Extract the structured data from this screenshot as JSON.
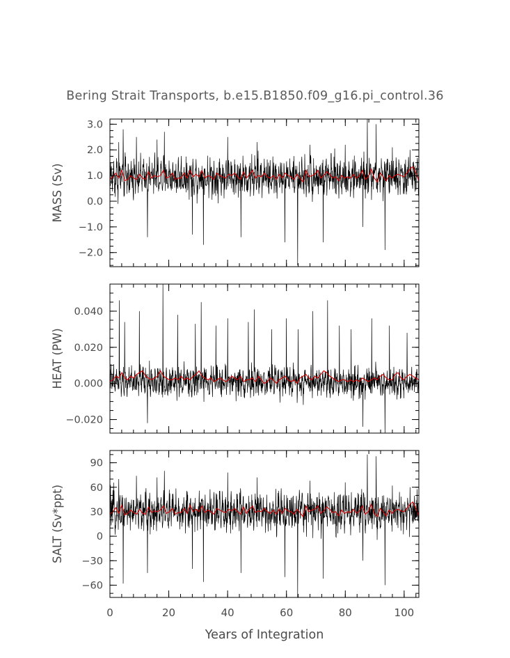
{
  "title": "Bering Strait Transports, b.e15.B1850.f09_g16.pi_control.36",
  "xlabel": "Years of Integration",
  "colors": {
    "raw": "#000000",
    "smooth": "#d40000",
    "axis": "#000000",
    "text": "#4a4a4a"
  },
  "chart_data": [
    {
      "type": "line",
      "ylabel": "MASS (Sv)",
      "xlim": [
        0,
        105
      ],
      "ylim": [
        -2.55,
        3.2
      ],
      "yticks": [
        3.0,
        2.0,
        1.0,
        0.0,
        -1.0,
        -2.0
      ],
      "ytick_labels": [
        "3.0",
        "2.0",
        "1.0",
        "0.0",
        "−1.0",
        "−2.0"
      ],
      "y_minor_step": 0.25,
      "xticks": [
        0,
        20,
        40,
        60,
        80,
        100
      ],
      "x_minor_step": 4,
      "show_xtick_labels": false,
      "series": [
        {
          "role": "monthly",
          "color": "#000000",
          "mean": 0.95,
          "amp": 0.55,
          "spikes": [
            [
              3,
              2.3
            ],
            [
              4.5,
              2.8
            ],
            [
              9,
              2.5
            ],
            [
              12.8,
              -1.4
            ],
            [
              16,
              2.4
            ],
            [
              18.5,
              2.7
            ],
            [
              28,
              -1.3
            ],
            [
              31.8,
              -1.7
            ],
            [
              40,
              2.5
            ],
            [
              44.5,
              -1.4
            ],
            [
              50,
              2.3
            ],
            [
              59.5,
              -1.6
            ],
            [
              63.8,
              -2.5
            ],
            [
              68,
              2.2
            ],
            [
              72.5,
              -1.6
            ],
            [
              80,
              2.2
            ],
            [
              86,
              -1.0
            ],
            [
              87.5,
              3.2
            ],
            [
              90.5,
              3.0
            ],
            [
              93.5,
              -1.9
            ],
            [
              96,
              2.1
            ],
            [
              102,
              2.0
            ]
          ]
        },
        {
          "role": "annual",
          "color": "#d40000",
          "values": [
            0.85,
            0.95,
            1.1,
            0.9,
            1.2,
            0.8,
            0.85,
            1.0,
            0.9,
            0.85,
            1.05,
            0.9,
            0.85,
            1.15,
            0.9,
            1.0,
            0.95,
            1.0,
            1.2,
            0.9,
            0.95,
            1.1,
            0.85,
            0.9,
            0.9,
            1.1,
            0.9,
            1.2,
            0.95,
            1.05,
            0.95,
            1.2,
            0.9,
            1.0,
            0.95,
            0.85,
            1.1,
            1.0,
            0.95,
            0.9,
            1.05,
            1.0,
            1.1,
            0.95,
            0.85,
            1.15,
            0.9,
            1.05,
            1.2,
            0.9,
            1.0,
            0.95,
            1.1,
            0.95,
            0.9,
            1.0,
            0.85,
            1.05,
            0.9,
            1.1,
            1.0,
            0.95,
            0.85,
            1.05,
            0.9,
            0.75,
            1.2,
            0.95,
            1.0,
            1.05,
            1.2,
            0.9,
            1.0,
            1.15,
            1.05,
            0.9,
            0.95,
            0.8,
            1.0,
            0.9,
            0.95,
            0.9,
            1.05,
            0.9,
            1.0,
            1.2,
            0.85,
            0.95,
            1.25,
            0.9,
            0.75,
            1.1,
            0.95,
            0.8,
            1.0,
            0.9,
            1.0,
            1.05,
            1.0,
            0.95,
            1.1,
            1.25,
            1.35,
            1.1,
            0.8
          ]
        }
      ]
    },
    {
      "type": "line",
      "ylabel": "HEAT (PW)",
      "xlim": [
        0,
        105
      ],
      "ylim": [
        -0.0275,
        0.055
      ],
      "yticks": [
        0.04,
        0.02,
        0.0,
        -0.02
      ],
      "ytick_labels": [
        "0.040",
        "0.020",
        "0.000",
        "−0.020"
      ],
      "y_minor_step": 0.005,
      "xticks": [
        0,
        20,
        40,
        60,
        80,
        100
      ],
      "x_minor_step": 4,
      "show_xtick_labels": false,
      "series": [
        {
          "role": "monthly",
          "color": "#000000",
          "mean": 0.001,
          "amp": 0.006,
          "spikes": [
            [
              3.2,
              0.046
            ],
            [
              5.0,
              0.034
            ],
            [
              10.0,
              0.04
            ],
            [
              12.8,
              -0.022
            ],
            [
              18.0,
              0.055
            ],
            [
              23.0,
              0.038
            ],
            [
              29.0,
              0.033
            ],
            [
              31.0,
              0.045
            ],
            [
              36.0,
              0.032
            ],
            [
              40.0,
              0.036
            ],
            [
              47.0,
              0.034
            ],
            [
              49.0,
              0.041
            ],
            [
              55.0,
              0.03
            ],
            [
              60.0,
              0.036
            ],
            [
              64.0,
              0.03
            ],
            [
              69.0,
              0.04
            ],
            [
              74.0,
              0.046
            ],
            [
              78.0,
              0.032
            ],
            [
              82.0,
              0.03
            ],
            [
              86.0,
              -0.024
            ],
            [
              89.0,
              0.036
            ],
            [
              93.5,
              -0.028
            ],
            [
              95.0,
              0.032
            ],
            [
              101.0,
              0.028
            ]
          ]
        },
        {
          "role": "annual",
          "color": "#d40000",
          "values": [
            0.001,
            0.002,
            0.004,
            0.003,
            0.006,
            0.003,
            0.002,
            0.004,
            0.003,
            0.005,
            0.006,
            0.007,
            0.004,
            0.003,
            0.002,
            0.003,
            0.004,
            0.007,
            0.004,
            0.003,
            0.002,
            0.002,
            0.003,
            0.002,
            0.004,
            0.002,
            0.003,
            0.002,
            0.004,
            0.005,
            0.007,
            0.004,
            0.003,
            0.002,
            0.003,
            0.001,
            0.002,
            0.003,
            0.002,
            0.001,
            0.002,
            0.004,
            0.003,
            0.002,
            0.004,
            0.001,
            0.002,
            0.002,
            0.003,
            0.001,
            0.004,
            0.002,
            0.0,
            0.001,
            0.003,
            0.002,
            0.0,
            0.002,
            0.003,
            0.004,
            0.002,
            0.001,
            0.002,
            0.0,
            0.003,
            0.004,
            0.005,
            0.003,
            0.002,
            0.004,
            0.003,
            0.005,
            0.007,
            0.006,
            0.004,
            0.003,
            0.002,
            0.001,
            0.002,
            0.002,
            0.001,
            0.002,
            0.001,
            0.002,
            0.001,
            0.003,
            0.002,
            0.001,
            0.002,
            0.003,
            0.002,
            0.004,
            0.005,
            0.003,
            0.002,
            0.002,
            0.005,
            0.006,
            0.003,
            0.002,
            0.004,
            0.005,
            0.004,
            0.003,
            0.002
          ]
        }
      ]
    },
    {
      "type": "line",
      "ylabel": "SALT (Sv*ppt)",
      "xlim": [
        0,
        105
      ],
      "ylim": [
        -75,
        105
      ],
      "yticks": [
        90,
        60,
        30,
        0,
        -30,
        -60
      ],
      "ytick_labels": [
        "90",
        "60",
        "30",
        "0",
        "−30",
        "−60"
      ],
      "y_minor_step": 10,
      "xticks": [
        0,
        20,
        40,
        60,
        80,
        100
      ],
      "x_minor_step": 4,
      "show_xtick_labels": true,
      "series": [
        {
          "role": "monthly",
          "color": "#000000",
          "mean": 30,
          "amp": 17,
          "spikes": [
            [
              3,
              70
            ],
            [
              4.5,
              -58
            ],
            [
              9,
              74
            ],
            [
              12.8,
              -45
            ],
            [
              16,
              72
            ],
            [
              18.5,
              80
            ],
            [
              28,
              -40
            ],
            [
              31.8,
              -56
            ],
            [
              40,
              78
            ],
            [
              44.5,
              -45
            ],
            [
              50,
              72
            ],
            [
              59.5,
              -50
            ],
            [
              63.8,
              -75
            ],
            [
              68,
              68
            ],
            [
              72.5,
              -52
            ],
            [
              80,
              66
            ],
            [
              86,
              -30
            ],
            [
              87.5,
              100
            ],
            [
              90.5,
              98
            ],
            [
              93.5,
              -60
            ],
            [
              96,
              62
            ],
            [
              102,
              60
            ]
          ]
        },
        {
          "role": "annual",
          "color": "#d40000",
          "values": [
            27,
            30,
            35,
            28,
            38,
            26,
            28,
            32,
            29,
            27,
            33,
            28,
            27,
            36,
            29,
            31,
            30,
            32,
            37,
            28,
            30,
            34,
            27,
            29,
            29,
            34,
            28,
            38,
            30,
            33,
            30,
            37,
            29,
            32,
            30,
            27,
            34,
            32,
            30,
            29,
            33,
            31,
            34,
            30,
            27,
            36,
            28,
            33,
            37,
            29,
            31,
            30,
            34,
            30,
            28,
            32,
            27,
            33,
            28,
            34,
            31,
            30,
            27,
            33,
            29,
            24,
            37,
            30,
            32,
            33,
            37,
            28,
            31,
            36,
            33,
            29,
            30,
            25,
            32,
            28,
            30,
            29,
            33,
            28,
            31,
            37,
            27,
            30,
            39,
            28,
            24,
            34,
            30,
            25,
            32,
            28,
            32,
            33,
            31,
            30,
            34,
            39,
            42,
            34,
            25
          ]
        }
      ]
    }
  ]
}
